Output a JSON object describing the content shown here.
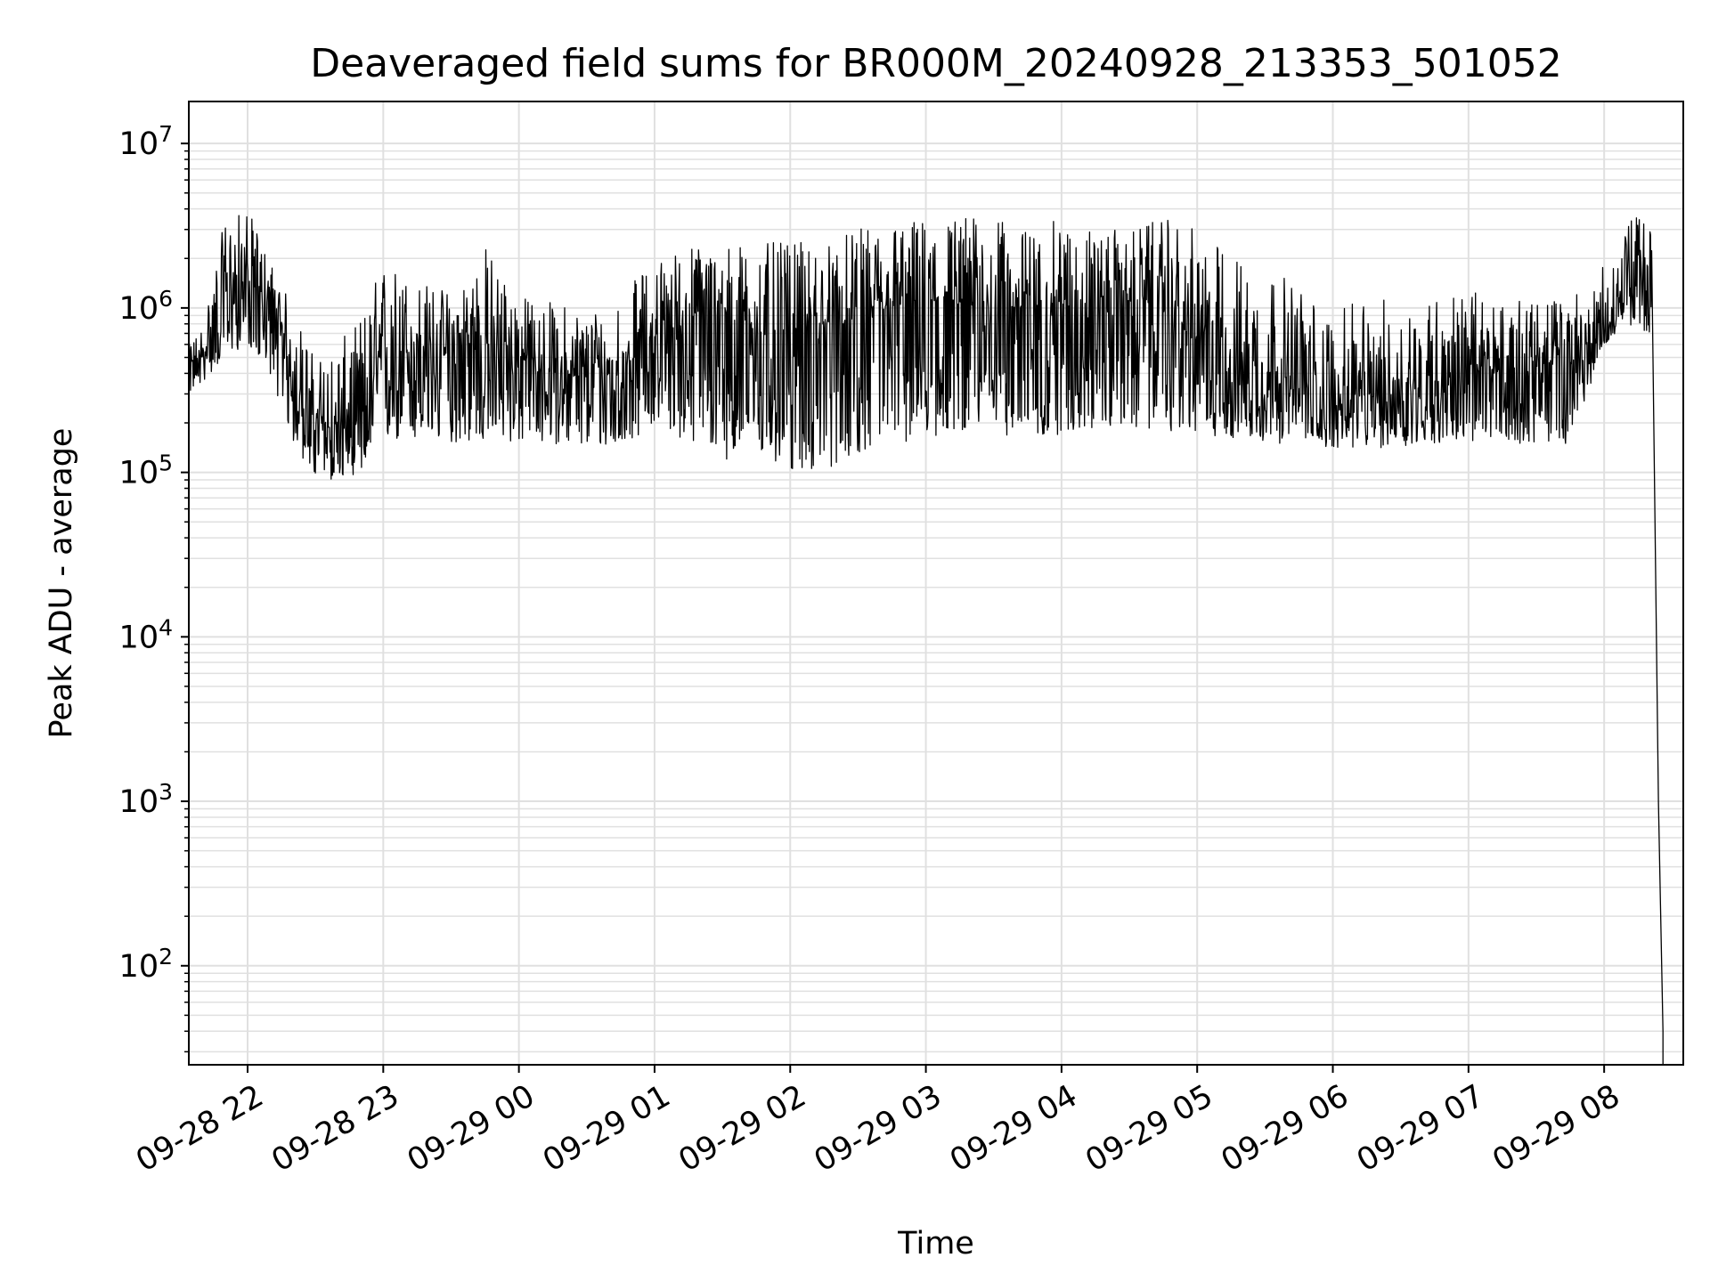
{
  "chart_data": {
    "type": "line",
    "title": "Deaveraged field sums for BR000M_20240928_213353_501052",
    "xlabel": "Time",
    "ylabel": "Peak ADU - average",
    "yscale": "log",
    "ylim": [
      25,
      18000000
    ],
    "xlim": [
      "2024-09-28 21:34",
      "2024-09-29 08:35"
    ],
    "grid": true,
    "line_color": "#000000",
    "grid_color": "#e0e0e0",
    "x_ticks": [
      {
        "value": "2024-09-28 22:00",
        "label": "09-28 22"
      },
      {
        "value": "2024-09-28 23:00",
        "label": "09-28 23"
      },
      {
        "value": "2024-09-29 00:00",
        "label": "09-29 00"
      },
      {
        "value": "2024-09-29 01:00",
        "label": "09-29 01"
      },
      {
        "value": "2024-09-29 02:00",
        "label": "09-29 02"
      },
      {
        "value": "2024-09-29 03:00",
        "label": "09-29 03"
      },
      {
        "value": "2024-09-29 04:00",
        "label": "09-29 04"
      },
      {
        "value": "2024-09-29 05:00",
        "label": "09-29 05"
      },
      {
        "value": "2024-09-29 06:00",
        "label": "09-29 06"
      },
      {
        "value": "2024-09-29 07:00",
        "label": "09-29 07"
      },
      {
        "value": "2024-09-29 08:00",
        "label": "09-29 08"
      }
    ],
    "y_ticks": [
      {
        "value": 100,
        "base": "10",
        "exp": "2"
      },
      {
        "value": 1000,
        "base": "10",
        "exp": "3"
      },
      {
        "value": 10000,
        "base": "10",
        "exp": "4"
      },
      {
        "value": 100000,
        "base": "10",
        "exp": "5"
      },
      {
        "value": 1000000,
        "base": "10",
        "exp": "6"
      },
      {
        "value": 10000000,
        "base": "10",
        "exp": "7"
      }
    ],
    "series": [
      {
        "x": [
          "2024-09-28 21:34",
          "2024-09-28 21:40",
          "2024-09-28 21:50",
          "2024-09-28 22:00",
          "2024-09-28 22:10",
          "2024-09-28 22:20",
          "2024-09-28 22:30",
          "2024-09-28 22:40",
          "2024-09-28 22:50",
          "2024-09-28 23:00",
          "2024-09-28 23:15",
          "2024-09-28 23:30",
          "2024-09-28 23:45",
          "2024-09-29 00:00",
          "2024-09-29 00:15",
          "2024-09-29 00:30",
          "2024-09-29 00:45",
          "2024-09-29 01:00",
          "2024-09-29 01:15",
          "2024-09-29 01:30",
          "2024-09-29 01:45",
          "2024-09-29 02:00",
          "2024-09-29 02:15",
          "2024-09-29 02:30",
          "2024-09-29 02:45",
          "2024-09-29 03:00",
          "2024-09-29 03:15",
          "2024-09-29 03:30",
          "2024-09-29 03:45",
          "2024-09-29 04:00",
          "2024-09-29 04:15",
          "2024-09-29 04:30",
          "2024-09-29 04:45",
          "2024-09-29 05:00",
          "2024-09-29 05:15",
          "2024-09-29 05:30",
          "2024-09-29 05:45",
          "2024-09-29 06:00",
          "2024-09-29 06:15",
          "2024-09-29 06:30",
          "2024-09-29 06:45",
          "2024-09-29 07:00",
          "2024-09-29 07:15",
          "2024-09-29 07:30",
          "2024-09-29 07:45",
          "2024-09-29 08:00",
          "2024-09-29 08:10",
          "2024-09-29 08:18",
          "2024-09-29 08:21",
          "2024-09-29 08:24",
          "2024-09-29 08:26"
        ],
        "y_center": [
          450000,
          500000,
          1200000,
          1500000,
          1000000,
          400000,
          200000,
          180000,
          200000,
          500000,
          550000,
          500000,
          600000,
          500000,
          400000,
          380000,
          400000,
          700000,
          800000,
          900000,
          700000,
          650000,
          800000,
          800000,
          1000000,
          1100000,
          1050000,
          1000000,
          1000000,
          1000000,
          1100000,
          1100000,
          1000000,
          600000,
          500000,
          400000,
          300000,
          250000,
          280000,
          300000,
          350000,
          400000,
          420000,
          450000,
          450000,
          650000,
          1500000,
          2000000,
          1500000,
          1000,
          40
        ],
        "y_low": [
          300000,
          350000,
          500000,
          600000,
          400000,
          150000,
          90000,
          90000,
          100000,
          150000,
          150000,
          150000,
          150000,
          150000,
          150000,
          140000,
          140000,
          200000,
          150000,
          120000,
          120000,
          100000,
          100000,
          130000,
          150000,
          150000,
          180000,
          180000,
          150000,
          170000,
          180000,
          180000,
          180000,
          170000,
          160000,
          150000,
          150000,
          140000,
          140000,
          140000,
          150000,
          150000,
          150000,
          150000,
          150000,
          600000,
          800000,
          700000,
          500000,
          500,
          25
        ],
        "y_high": [
          600000,
          800000,
          3500000,
          4000000,
          2000000,
          1000000,
          500000,
          600000,
          900000,
          2000000,
          1500000,
          1300000,
          2500000,
          1200000,
          1100000,
          1000000,
          1200000,
          2000000,
          2500000,
          2500000,
          2500000,
          2500000,
          2500000,
          3000000,
          3500000,
          3500000,
          3800000,
          3500000,
          3000000,
          3500000,
          3000000,
          3000000,
          3500000,
          3000000,
          2200000,
          1800000,
          1400000,
          900000,
          1200000,
          1100000,
          1200000,
          1300000,
          1100000,
          1100000,
          1200000,
          1800000,
          3500000,
          3600000,
          3000000,
          2000,
          60
        ]
      }
    ]
  }
}
